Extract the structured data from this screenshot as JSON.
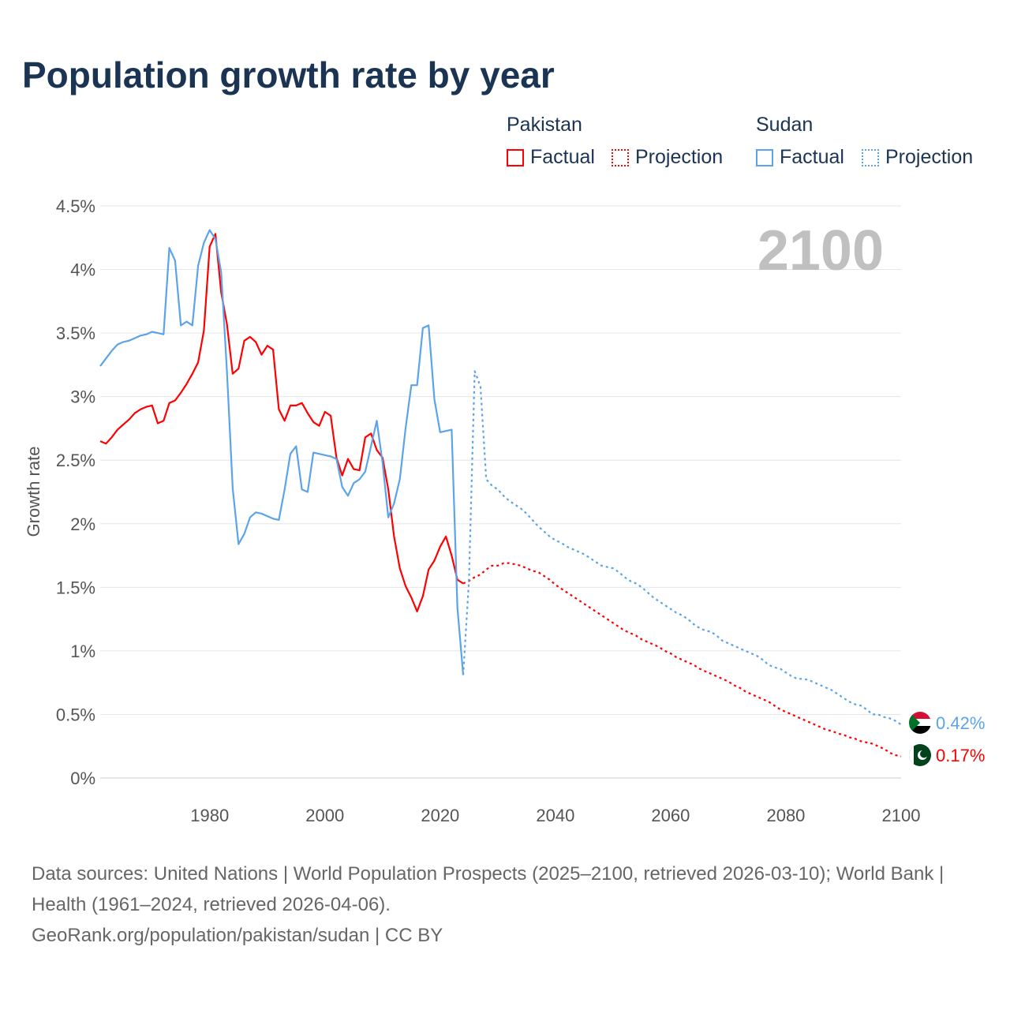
{
  "colors": {
    "pakistan": "#ff0000",
    "sudan": "#5ba3ea",
    "title": "#1b3453",
    "year_label": "#c0c0c0"
  },
  "legend": {
    "groups": [
      {
        "country": "Pakistan",
        "factual": "Factual",
        "projection": "Projection"
      },
      {
        "country": "Sudan",
        "factual": "Factual",
        "projection": "Projection"
      }
    ]
  },
  "footer": {
    "sources": "Data sources: United Nations | World Population Prospects (2025–2100, retrieved 2026-03-10); World Bank | Health (1961–2024, retrieved 2026-04-06).",
    "credit": "GeoRank.org/population/pakistan/sudan | CC BY"
  },
  "chart_data": {
    "type": "line",
    "title": "Population growth rate by year",
    "xlabel": "",
    "ylabel": "Growth rate",
    "year_label": "2100",
    "xlim": [
      1961,
      2100
    ],
    "ylim": [
      0,
      4.5
    ],
    "x_ticks": [
      1980,
      2000,
      2020,
      2040,
      2060,
      2080,
      2100
    ],
    "y_ticks": [
      {
        "v": 0,
        "label": "0%"
      },
      {
        "v": 0.5,
        "label": "0.5%"
      },
      {
        "v": 1,
        "label": "1%"
      },
      {
        "v": 1.5,
        "label": "1.5%"
      },
      {
        "v": 2,
        "label": "2%"
      },
      {
        "v": 2.5,
        "label": "2.5%"
      },
      {
        "v": 3,
        "label": "3%"
      },
      {
        "v": 3.5,
        "label": "3.5%"
      },
      {
        "v": 4,
        "label": "4%"
      },
      {
        "v": 4.5,
        "label": "4.5%"
      }
    ],
    "grid": true,
    "legend_position": "top-right",
    "series": [
      {
        "name": "Pakistan",
        "kind": "Factual",
        "color": "#ff0000",
        "start": 1961,
        "values": [
          2.65,
          2.63,
          2.68,
          2.74,
          2.78,
          2.82,
          2.87,
          2.9,
          2.92,
          2.93,
          2.79,
          2.81,
          2.95,
          2.97,
          3.03,
          3.1,
          3.18,
          3.27,
          3.52,
          4.18,
          4.28,
          3.82,
          3.57,
          3.18,
          3.22,
          3.44,
          3.47,
          3.43,
          3.33,
          3.4,
          3.37,
          2.9,
          2.81,
          2.93,
          2.93,
          2.95,
          2.87,
          2.8,
          2.77,
          2.88,
          2.85,
          2.52,
          2.38,
          2.51,
          2.43,
          2.42,
          2.68,
          2.71,
          2.58,
          2.52,
          2.27,
          1.9,
          1.65,
          1.51,
          1.42,
          1.31,
          1.43,
          1.64,
          1.71,
          1.82,
          1.9,
          1.75,
          1.56,
          1.53
        ]
      },
      {
        "name": "Pakistan",
        "kind": "Projection",
        "color": "#ff0000",
        "start": 2024,
        "values": [
          1.53,
          1.55,
          1.58,
          1.6,
          1.64,
          1.67,
          1.67,
          1.69,
          1.69,
          1.68,
          1.67,
          1.65,
          1.63,
          1.62,
          1.59,
          1.56,
          1.52,
          1.49,
          1.46,
          1.43,
          1.4,
          1.37,
          1.34,
          1.31,
          1.28,
          1.25,
          1.22,
          1.19,
          1.16,
          1.14,
          1.12,
          1.09,
          1.07,
          1.05,
          1.03,
          1.0,
          0.98,
          0.95,
          0.93,
          0.91,
          0.89,
          0.86,
          0.84,
          0.82,
          0.8,
          0.78,
          0.76,
          0.73,
          0.71,
          0.68,
          0.66,
          0.64,
          0.62,
          0.6,
          0.57,
          0.54,
          0.52,
          0.5,
          0.48,
          0.46,
          0.44,
          0.42,
          0.4,
          0.38,
          0.37,
          0.35,
          0.34,
          0.32,
          0.31,
          0.29,
          0.28,
          0.27,
          0.25,
          0.23,
          0.2,
          0.18,
          0.17
        ]
      },
      {
        "name": "Sudan",
        "kind": "Factual",
        "color": "#5ba3ea",
        "start": 1961,
        "values": [
          3.24,
          3.3,
          3.36,
          3.41,
          3.43,
          3.44,
          3.46,
          3.48,
          3.49,
          3.51,
          3.5,
          3.49,
          4.17,
          4.07,
          3.56,
          3.59,
          3.56,
          4.03,
          4.21,
          4.31,
          4.24,
          3.98,
          3.2,
          2.28,
          1.84,
          1.92,
          2.05,
          2.09,
          2.08,
          2.06,
          2.04,
          2.03,
          2.27,
          2.55,
          2.61,
          2.27,
          2.25,
          2.56,
          2.55,
          2.54,
          2.53,
          2.51,
          2.29,
          2.22,
          2.32,
          2.35,
          2.41,
          2.61,
          2.81,
          2.48,
          2.05,
          2.16,
          2.35,
          2.75,
          3.09,
          3.09,
          3.54,
          3.56,
          2.98,
          2.72,
          2.73,
          2.74,
          1.34,
          0.81
        ]
      },
      {
        "name": "Sudan",
        "kind": "Projection",
        "color": "#5ba3ea",
        "start": 2024,
        "values": [
          0.81,
          1.55,
          3.2,
          3.08,
          2.35,
          2.3,
          2.27,
          2.22,
          2.18,
          2.15,
          2.12,
          2.08,
          2.03,
          1.98,
          1.94,
          1.9,
          1.87,
          1.85,
          1.82,
          1.8,
          1.78,
          1.76,
          1.73,
          1.7,
          1.67,
          1.66,
          1.65,
          1.62,
          1.58,
          1.55,
          1.53,
          1.5,
          1.46,
          1.42,
          1.39,
          1.36,
          1.33,
          1.3,
          1.28,
          1.25,
          1.21,
          1.18,
          1.16,
          1.15,
          1.12,
          1.08,
          1.06,
          1.04,
          1.02,
          1.0,
          0.98,
          0.96,
          0.93,
          0.89,
          0.87,
          0.86,
          0.83,
          0.8,
          0.78,
          0.78,
          0.77,
          0.75,
          0.73,
          0.71,
          0.69,
          0.66,
          0.63,
          0.6,
          0.58,
          0.57,
          0.54,
          0.5,
          0.5,
          0.48,
          0.47,
          0.45,
          0.42
        ]
      }
    ],
    "end_labels": [
      {
        "country": "Sudan",
        "label": "0.42%"
      },
      {
        "country": "Pakistan",
        "label": "0.17%"
      }
    ]
  }
}
